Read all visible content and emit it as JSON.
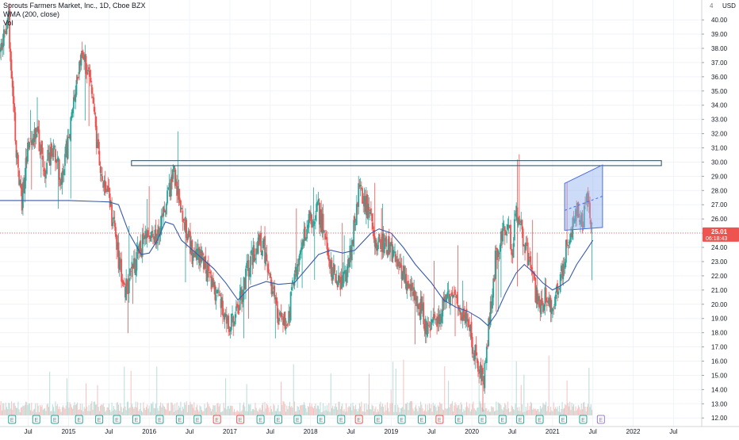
{
  "header": {
    "title": "Sprouts Farmers Market, Inc., 1D, Cboe BZX",
    "indicator": "WMA (200, close)",
    "volume_label": "Vol"
  },
  "price_axis": {
    "currency": "USD",
    "last_price": "25.01",
    "countdown": "06:18:43"
  },
  "colors": {
    "up": "#26a69a",
    "down": "#ef5350",
    "wma": "#3a5ba9",
    "resistance": "#2a4a5a",
    "channel_fill": "#8fb0ee",
    "channel_stroke": "#4a6fdc",
    "last_price": "#ef5350",
    "earnings": "#26a69a",
    "earnings_negative": "#ef5350",
    "earnings_future": "#9c7ad6",
    "grid": "#f0f3fa"
  },
  "chart_data": {
    "type": "candlestick",
    "title": "Sprouts Farmers Market, Inc., 1D, Cboe BZX",
    "ylabel": "USD",
    "ylim": [
      11.4,
      41.4
    ],
    "y_ticks": [
      "12.00",
      "13.00",
      "14.00",
      "15.00",
      "16.00",
      "17.00",
      "18.00",
      "19.00",
      "20.00",
      "21.00",
      "22.00",
      "23.00",
      "24.00",
      "25.00",
      "26.00",
      "27.00",
      "28.00",
      "29.00",
      "30.00",
      "31.00",
      "32.00",
      "33.00",
      "34.00",
      "35.00",
      "36.00",
      "37.00",
      "38.00",
      "39.00",
      "40.00"
    ],
    "x_ticks": [
      {
        "label": "Jul",
        "t": 2014.5
      },
      {
        "label": "2015",
        "t": 2015.0
      },
      {
        "label": "Jul",
        "t": 2015.5
      },
      {
        "label": "2016",
        "t": 2016.0
      },
      {
        "label": "Jul",
        "t": 2016.5
      },
      {
        "label": "2017",
        "t": 2017.0
      },
      {
        "label": "Jul",
        "t": 2017.5
      },
      {
        "label": "2018",
        "t": 2018.0
      },
      {
        "label": "Jul",
        "t": 2018.5
      },
      {
        "label": "2019",
        "t": 2019.0
      },
      {
        "label": "Jul",
        "t": 2019.5
      },
      {
        "label": "2020",
        "t": 2020.0
      },
      {
        "label": "Jul",
        "t": 2020.5
      },
      {
        "label": "2021",
        "t": 2021.0
      },
      {
        "label": "Jul",
        "t": 2021.5
      },
      {
        "label": "2022",
        "t": 2022.0
      },
      {
        "label": "Jul",
        "t": 2022.5
      }
    ],
    "xlim": [
      2014.15,
      2022.85
    ],
    "price_path": [
      [
        2014.15,
        38.0
      ],
      [
        2014.25,
        40.5
      ],
      [
        2014.35,
        31.0
      ],
      [
        2014.42,
        27.0
      ],
      [
        2014.5,
        31.5
      ],
      [
        2014.6,
        32.0
      ],
      [
        2014.7,
        29.5
      ],
      [
        2014.8,
        31.0
      ],
      [
        2014.9,
        29.0
      ],
      [
        2015.0,
        31.5
      ],
      [
        2015.08,
        34.5
      ],
      [
        2015.15,
        37.8
      ],
      [
        2015.25,
        36.0
      ],
      [
        2015.32,
        33.0
      ],
      [
        2015.4,
        29.0
      ],
      [
        2015.5,
        27.2
      ],
      [
        2015.58,
        25.0
      ],
      [
        2015.65,
        22.0
      ],
      [
        2015.72,
        21.0
      ],
      [
        2015.8,
        22.5
      ],
      [
        2015.9,
        24.0
      ],
      [
        2016.0,
        25.0
      ],
      [
        2016.1,
        24.5
      ],
      [
        2016.2,
        27.0
      ],
      [
        2016.3,
        29.2
      ],
      [
        2016.38,
        27.5
      ],
      [
        2016.45,
        25.5
      ],
      [
        2016.55,
        23.0
      ],
      [
        2016.62,
        23.5
      ],
      [
        2016.7,
        22.5
      ],
      [
        2016.8,
        21.0
      ],
      [
        2016.88,
        20.0
      ],
      [
        2016.95,
        19.0
      ],
      [
        2017.05,
        18.5
      ],
      [
        2017.12,
        20.0
      ],
      [
        2017.2,
        22.0
      ],
      [
        2017.3,
        23.5
      ],
      [
        2017.4,
        24.5
      ],
      [
        2017.48,
        22.5
      ],
      [
        2017.55,
        20.5
      ],
      [
        2017.62,
        18.8
      ],
      [
        2017.7,
        18.5
      ],
      [
        2017.78,
        21.0
      ],
      [
        2017.85,
        23.0
      ],
      [
        2017.92,
        25.0
      ],
      [
        2018.0,
        25.8
      ],
      [
        2018.08,
        27.0
      ],
      [
        2018.15,
        25.5
      ],
      [
        2018.22,
        23.0
      ],
      [
        2018.3,
        22.0
      ],
      [
        2018.38,
        21.5
      ],
      [
        2018.45,
        22.0
      ],
      [
        2018.52,
        24.5
      ],
      [
        2018.6,
        28.0
      ],
      [
        2018.68,
        27.0
      ],
      [
        2018.75,
        26.5
      ],
      [
        2018.8,
        24.5
      ],
      [
        2018.88,
        24.5
      ],
      [
        2018.95,
        24.0
      ],
      [
        2019.05,
        23.5
      ],
      [
        2019.12,
        22.5
      ],
      [
        2019.2,
        21.5
      ],
      [
        2019.3,
        20.5
      ],
      [
        2019.38,
        19.5
      ],
      [
        2019.45,
        18.0
      ],
      [
        2019.55,
        19.0
      ],
      [
        2019.62,
        19.5
      ],
      [
        2019.7,
        20.5
      ],
      [
        2019.8,
        20.0
      ],
      [
        2019.88,
        19.5
      ],
      [
        2019.95,
        18.5
      ],
      [
        2020.02,
        17.0
      ],
      [
        2020.08,
        15.5
      ],
      [
        2020.15,
        14.5
      ],
      [
        2020.22,
        19.0
      ],
      [
        2020.3,
        23.5
      ],
      [
        2020.38,
        25.0
      ],
      [
        2020.45,
        25.5
      ],
      [
        2020.5,
        24.0
      ],
      [
        2020.55,
        26.5
      ],
      [
        2020.62,
        25.0
      ],
      [
        2020.7,
        23.0
      ],
      [
        2020.78,
        21.0
      ],
      [
        2020.85,
        20.0
      ],
      [
        2020.92,
        20.5
      ],
      [
        2021.0,
        20.0
      ],
      [
        2021.08,
        21.0
      ],
      [
        2021.15,
        23.5
      ],
      [
        2021.22,
        25.0
      ],
      [
        2021.3,
        27.0
      ],
      [
        2021.38,
        26.0
      ],
      [
        2021.45,
        27.5
      ],
      [
        2021.5,
        25.0
      ]
    ],
    "wma_path": [
      [
        2014.15,
        27.3
      ],
      [
        2014.5,
        27.3
      ],
      [
        2015.0,
        27.3
      ],
      [
        2015.5,
        27.2
      ],
      [
        2015.62,
        27.0
      ],
      [
        2015.75,
        25.0
      ],
      [
        2015.9,
        23.5
      ],
      [
        2016.0,
        23.6
      ],
      [
        2016.1,
        24.5
      ],
      [
        2016.2,
        25.8
      ],
      [
        2016.3,
        25.6
      ],
      [
        2016.4,
        24.5
      ],
      [
        2016.6,
        23.5
      ],
      [
        2016.8,
        22.5
      ],
      [
        2016.95,
        21.5
      ],
      [
        2017.1,
        20.3
      ],
      [
        2017.25,
        21.2
      ],
      [
        2017.45,
        21.6
      ],
      [
        2017.6,
        21.4
      ],
      [
        2017.8,
        21.5
      ],
      [
        2017.95,
        22.5
      ],
      [
        2018.1,
        23.5
      ],
      [
        2018.25,
        23.8
      ],
      [
        2018.4,
        23.6
      ],
      [
        2018.55,
        23.8
      ],
      [
        2018.75,
        25.0
      ],
      [
        2018.85,
        25.3
      ],
      [
        2019.0,
        25.0
      ],
      [
        2019.15,
        24.0
      ],
      [
        2019.3,
        22.8
      ],
      [
        2019.5,
        21.5
      ],
      [
        2019.65,
        20.3
      ],
      [
        2019.8,
        19.8
      ],
      [
        2019.95,
        19.5
      ],
      [
        2020.1,
        19.0
      ],
      [
        2020.2,
        18.5
      ],
      [
        2020.3,
        19.3
      ],
      [
        2020.42,
        20.8
      ],
      [
        2020.55,
        22.2
      ],
      [
        2020.65,
        22.8
      ],
      [
        2020.75,
        22.3
      ],
      [
        2020.88,
        21.5
      ],
      [
        2021.0,
        21.0
      ],
      [
        2021.1,
        21.3
      ],
      [
        2021.2,
        21.7
      ],
      [
        2021.3,
        22.8
      ],
      [
        2021.42,
        23.8
      ],
      [
        2021.5,
        24.5
      ]
    ],
    "resistance_box": {
      "t0": 2015.78,
      "t1": 2022.35,
      "y_low": 29.75,
      "y_high": 30.1
    },
    "channel": {
      "t0": 2021.15,
      "t1": 2021.62,
      "upper_start": 28.5,
      "upper_end": 29.8,
      "lower_start": 25.2,
      "lower_end": 25.4,
      "mid_start": 26.6,
      "mid_end": 27.6
    },
    "last_price": 25.01,
    "earnings_markers": [
      {
        "t": 2014.13,
        "label": "E",
        "kind": "normal"
      },
      {
        "t": 2014.3,
        "label": "E",
        "kind": "normal"
      },
      {
        "t": 2014.6,
        "label": "E",
        "kind": "normal"
      },
      {
        "t": 2014.83,
        "label": "E",
        "kind": "normal"
      },
      {
        "t": 2015.13,
        "label": "E",
        "kind": "normal"
      },
      {
        "t": 2015.38,
        "label": "E",
        "kind": "normal"
      },
      {
        "t": 2015.6,
        "label": "E",
        "kind": "normal"
      },
      {
        "t": 2015.84,
        "label": "E",
        "kind": "normal"
      },
      {
        "t": 2016.13,
        "label": "E",
        "kind": "normal"
      },
      {
        "t": 2016.38,
        "label": "E",
        "kind": "normal"
      },
      {
        "t": 2016.6,
        "label": "E",
        "kind": "normal"
      },
      {
        "t": 2016.84,
        "label": "E",
        "kind": "negative"
      },
      {
        "t": 2017.13,
        "label": "E",
        "kind": "negative"
      },
      {
        "t": 2017.38,
        "label": "E",
        "kind": "normal"
      },
      {
        "t": 2017.6,
        "label": "E",
        "kind": "normal"
      },
      {
        "t": 2017.84,
        "label": "E",
        "kind": "normal"
      },
      {
        "t": 2018.13,
        "label": "E",
        "kind": "normal"
      },
      {
        "t": 2018.38,
        "label": "E",
        "kind": "normal"
      },
      {
        "t": 2018.6,
        "label": "E",
        "kind": "negative"
      },
      {
        "t": 2018.84,
        "label": "E",
        "kind": "normal"
      },
      {
        "t": 2019.13,
        "label": "E",
        "kind": "normal"
      },
      {
        "t": 2019.38,
        "label": "E",
        "kind": "normal"
      },
      {
        "t": 2019.6,
        "label": "E",
        "kind": "negative"
      },
      {
        "t": 2019.84,
        "label": "E",
        "kind": "normal"
      },
      {
        "t": 2020.13,
        "label": "E",
        "kind": "normal"
      },
      {
        "t": 2020.38,
        "label": "E",
        "kind": "normal"
      },
      {
        "t": 2020.6,
        "label": "E",
        "kind": "normal"
      },
      {
        "t": 2020.84,
        "label": "E",
        "kind": "normal"
      },
      {
        "t": 2021.13,
        "label": "E",
        "kind": "normal"
      },
      {
        "t": 2021.38,
        "label": "E",
        "kind": "normal"
      },
      {
        "t": 2021.6,
        "label": "E",
        "kind": "future"
      }
    ]
  }
}
